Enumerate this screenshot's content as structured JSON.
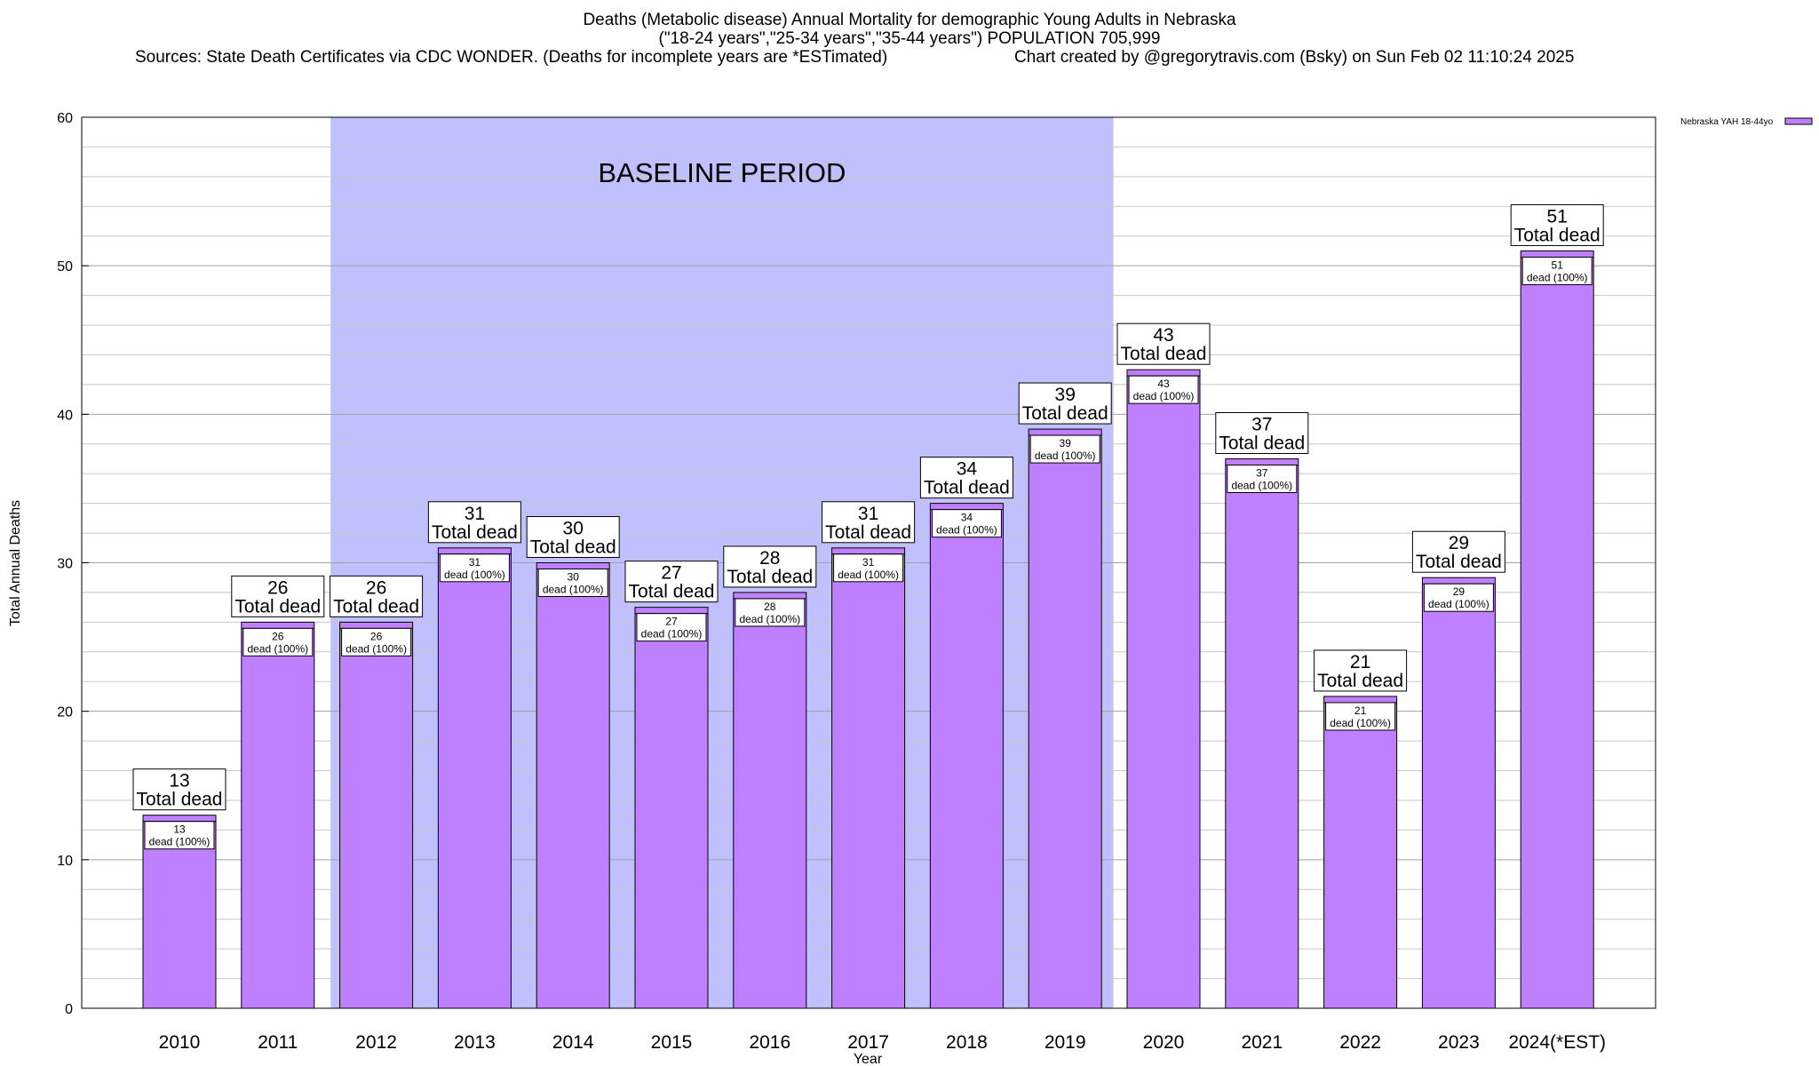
{
  "header": {
    "title_line1": "Deaths (Metabolic disease) Annual Mortality for demographic Young Adults in Nebraska",
    "title_line2": "(\"18-24 years\",\"25-34 years\",\"35-44 years\") POPULATION 705,999",
    "sources": "Sources: State Death Certificates via CDC WONDER. (Deaths for incomplete years are *ESTimated)",
    "credit": "Chart created by @gregorytravis.com (Bsky) on Sun Feb 02 11:10:24 2025"
  },
  "chart_data": {
    "type": "bar",
    "xlabel": "Year",
    "ylabel": "Total Annual Deaths",
    "ylim": [
      0,
      60
    ],
    "y_ticks": [
      0,
      10,
      20,
      30,
      40,
      50,
      60
    ],
    "grid": true,
    "legend_position": "top-right",
    "series": [
      {
        "name": "Nebraska YAH 18-44yo",
        "color": "#bf80ff",
        "values": [
          13,
          26,
          26,
          31,
          30,
          27,
          28,
          31,
          34,
          39,
          43,
          37,
          21,
          29,
          51
        ]
      }
    ],
    "categories": [
      "2010",
      "2011",
      "2012",
      "2013",
      "2014",
      "2015",
      "2016",
      "2017",
      "2018",
      "2019",
      "2020",
      "2021",
      "2022",
      "2023",
      "2024(*EST)"
    ],
    "top_label_suffix": "Total dead",
    "inner_label_suffix": "dead (100%)",
    "baseline_period": {
      "label": "BASELINE PERIOD",
      "from": "2012",
      "to": "2019",
      "color": "#c0c0ff"
    }
  }
}
